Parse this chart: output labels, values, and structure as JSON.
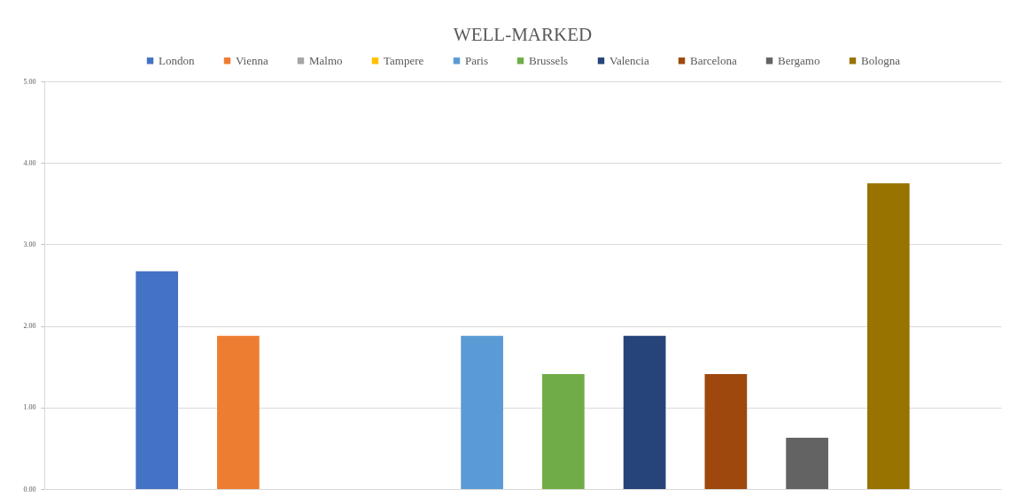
{
  "chart_data": {
    "type": "bar",
    "title": "WELL-MARKED",
    "categories": [
      null
    ],
    "series": [
      {
        "name": "London",
        "color": "#4472c4",
        "values": [
          2.67
        ]
      },
      {
        "name": "Vienna",
        "color": "#ed7d31",
        "values": [
          1.88
        ]
      },
      {
        "name": "Malmo",
        "color": "#a5a5a5",
        "values": [
          0
        ]
      },
      {
        "name": "Tampere",
        "color": "#ffc000",
        "values": [
          0
        ]
      },
      {
        "name": "Paris",
        "color": "#5b9bd5",
        "values": [
          1.88
        ]
      },
      {
        "name": "Brussels",
        "color": "#70ad47",
        "values": [
          1.41
        ]
      },
      {
        "name": "Valencia",
        "color": "#264478",
        "values": [
          1.88
        ]
      },
      {
        "name": "Barcelona",
        "color": "#9e480e",
        "values": [
          1.41
        ]
      },
      {
        "name": "Bergamo",
        "color": "#636363",
        "values": [
          0.63
        ]
      },
      {
        "name": "Bologna",
        "color": "#997300",
        "values": [
          3.75
        ]
      }
    ],
    "ylim": [
      0,
      5
    ],
    "yticks": [
      {
        "value": 0,
        "label": "0.00"
      },
      {
        "value": 1,
        "label": "1.00"
      },
      {
        "value": 2,
        "label": "2.00"
      },
      {
        "value": 3,
        "label": "3.00"
      },
      {
        "value": 4,
        "label": "4.00"
      },
      {
        "value": 5,
        "label": "5.00"
      }
    ],
    "grid": "y",
    "legend": "top"
  }
}
